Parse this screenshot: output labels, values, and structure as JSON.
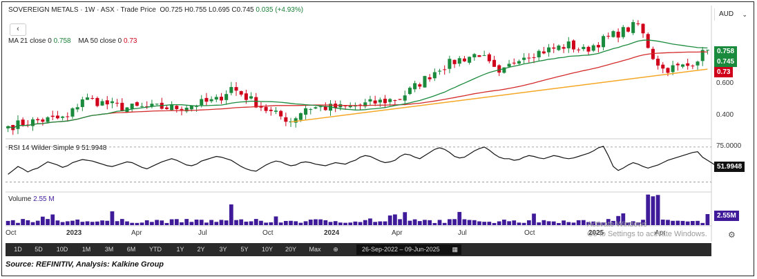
{
  "header": {
    "symbol": "SOVEREIGN METALS",
    "interval": "1W",
    "exchange": "ASX",
    "price_type": "Trade Price",
    "open": "O0.725",
    "high": "H0.755",
    "low": "L0.695",
    "close": "C0.745",
    "change": "0.035 (+4.93%)",
    "currency": "AUD"
  },
  "back_label": "‹",
  "ma_legend": {
    "ma21_label": "MA 21 close 0",
    "ma21_value": "0.758",
    "ma50_label": "MA 50 close 0",
    "ma50_value": "0.73"
  },
  "price_tags": {
    "ma21": "0.758",
    "close": "0.745",
    "ma50": "0.73",
    "tick_600": "0.600",
    "tick_400": "0.400"
  },
  "rsi": {
    "label": "RSI 14 Wilder Simple 9",
    "value": "51.9948",
    "upper_tick": "75.0000"
  },
  "volume": {
    "label": "Volume",
    "value": "2.55 M",
    "tag": "2.55M"
  },
  "x_axis_labels": [
    "Oct",
    "2023",
    "Apr",
    "Jul",
    "Oct",
    "2024",
    "Apr",
    "Jul",
    "Oct",
    "2025",
    "Apr"
  ],
  "range_buttons": [
    "1D",
    "5D",
    "10D",
    "1M",
    "3M",
    "6M",
    "YTD",
    "1Y",
    "2Y",
    "3Y",
    "5Y",
    "10Y",
    "20Y",
    "Max"
  ],
  "date_range": "26-Sep-2022  –  09-Jun-2025",
  "watermark": {
    "line1": "Activate Windows",
    "line2": "Go to Settings to activate Windows."
  },
  "source": "Source: REFINITIV, Analysis: Kalkine Group",
  "colors": {
    "up": "#1a8a3c",
    "down": "#d0021b",
    "ma21": "#1a8a3c",
    "ma50": "#d42a2a",
    "trendline": "#f5a623",
    "volume": "#3f1b9a",
    "rsi": "#111111"
  },
  "chart_data": [
    {
      "type": "candlestick",
      "title": "SOVEREIGN METALS",
      "frequency": "weekly",
      "x_range": [
        "2022-09-26",
        "2025-06-09"
      ],
      "y_scale": "log",
      "ylim": [
        0.33,
        1.05
      ],
      "y_ticks": [
        0.4,
        0.6
      ],
      "close_anchors": [
        {
          "x": "2022-09-26",
          "y": 0.36
        },
        {
          "x": "2022-11-07",
          "y": 0.38
        },
        {
          "x": "2022-12-19",
          "y": 0.39
        },
        {
          "x": "2023-01-09",
          "y": 0.47
        },
        {
          "x": "2023-03-06",
          "y": 0.43
        },
        {
          "x": "2023-05-22",
          "y": 0.43
        },
        {
          "x": "2023-07-17",
          "y": 0.46
        },
        {
          "x": "2023-08-07",
          "y": 0.52
        },
        {
          "x": "2023-10-02",
          "y": 0.41
        },
        {
          "x": "2023-10-30",
          "y": 0.38
        },
        {
          "x": "2023-11-20",
          "y": 0.43
        },
        {
          "x": "2024-01-15",
          "y": 0.43
        },
        {
          "x": "2024-04-01",
          "y": 0.47
        },
        {
          "x": "2024-05-27",
          "y": 0.63
        },
        {
          "x": "2024-06-24",
          "y": 0.68
        },
        {
          "x": "2024-07-22",
          "y": 0.72
        },
        {
          "x": "2024-08-19",
          "y": 0.58
        },
        {
          "x": "2024-09-16",
          "y": 0.7
        },
        {
          "x": "2024-10-14",
          "y": 0.73
        },
        {
          "x": "2024-11-25",
          "y": 0.78
        },
        {
          "x": "2024-12-16",
          "y": 0.74
        },
        {
          "x": "2025-01-20",
          "y": 0.84
        },
        {
          "x": "2025-03-03",
          "y": 0.95
        },
        {
          "x": "2025-03-24",
          "y": 0.7
        },
        {
          "x": "2025-04-07",
          "y": 0.62
        },
        {
          "x": "2025-05-12",
          "y": 0.64
        },
        {
          "x": "2025-06-09",
          "y": 0.745
        }
      ],
      "ma21_last": 0.758,
      "ma50_last": 0.73,
      "trendline": [
        {
          "x": "2023-10-30",
          "y": 0.375
        },
        {
          "x": "2025-06-09",
          "y": 0.62
        }
      ]
    },
    {
      "type": "line",
      "title": "RSI 14 Wilder Simple 9",
      "series": [
        {
          "name": "RSI",
          "values": [
            40,
            45,
            50,
            47,
            43,
            46,
            48,
            52,
            56,
            54,
            52,
            49,
            51,
            55,
            57,
            59,
            58,
            57,
            55,
            53,
            51,
            50,
            52,
            54,
            56,
            55,
            52,
            49,
            47,
            50,
            53,
            56,
            58,
            60,
            58,
            55,
            52,
            51,
            53,
            57,
            59,
            61,
            63,
            62,
            60,
            58,
            54,
            50,
            47,
            45,
            44,
            48,
            52,
            55,
            57,
            56,
            53,
            51,
            52,
            55,
            56,
            55,
            53,
            52,
            51,
            53,
            55,
            54,
            53,
            56,
            58,
            62,
            64,
            63,
            60,
            57,
            55,
            56,
            58,
            63,
            66,
            65,
            62,
            60,
            64,
            68,
            72,
            74,
            72,
            68,
            63,
            61,
            62,
            66,
            70,
            73,
            75,
            71,
            66,
            62,
            60,
            60,
            58,
            59,
            62,
            64,
            63,
            61,
            60,
            62,
            64,
            63,
            61,
            60,
            61,
            63,
            65,
            67,
            70,
            74,
            76,
            64,
            50,
            45,
            48,
            52,
            55,
            53,
            50,
            48,
            50,
            52,
            55,
            58,
            60,
            62,
            64,
            66,
            68,
            69,
            62,
            58,
            54,
            50,
            51.99
          ]
        }
      ],
      "reference_lines": [
        75,
        30
      ]
    },
    {
      "type": "bar",
      "title": "Volume",
      "unit": "M",
      "last_value": 2.55
    }
  ]
}
